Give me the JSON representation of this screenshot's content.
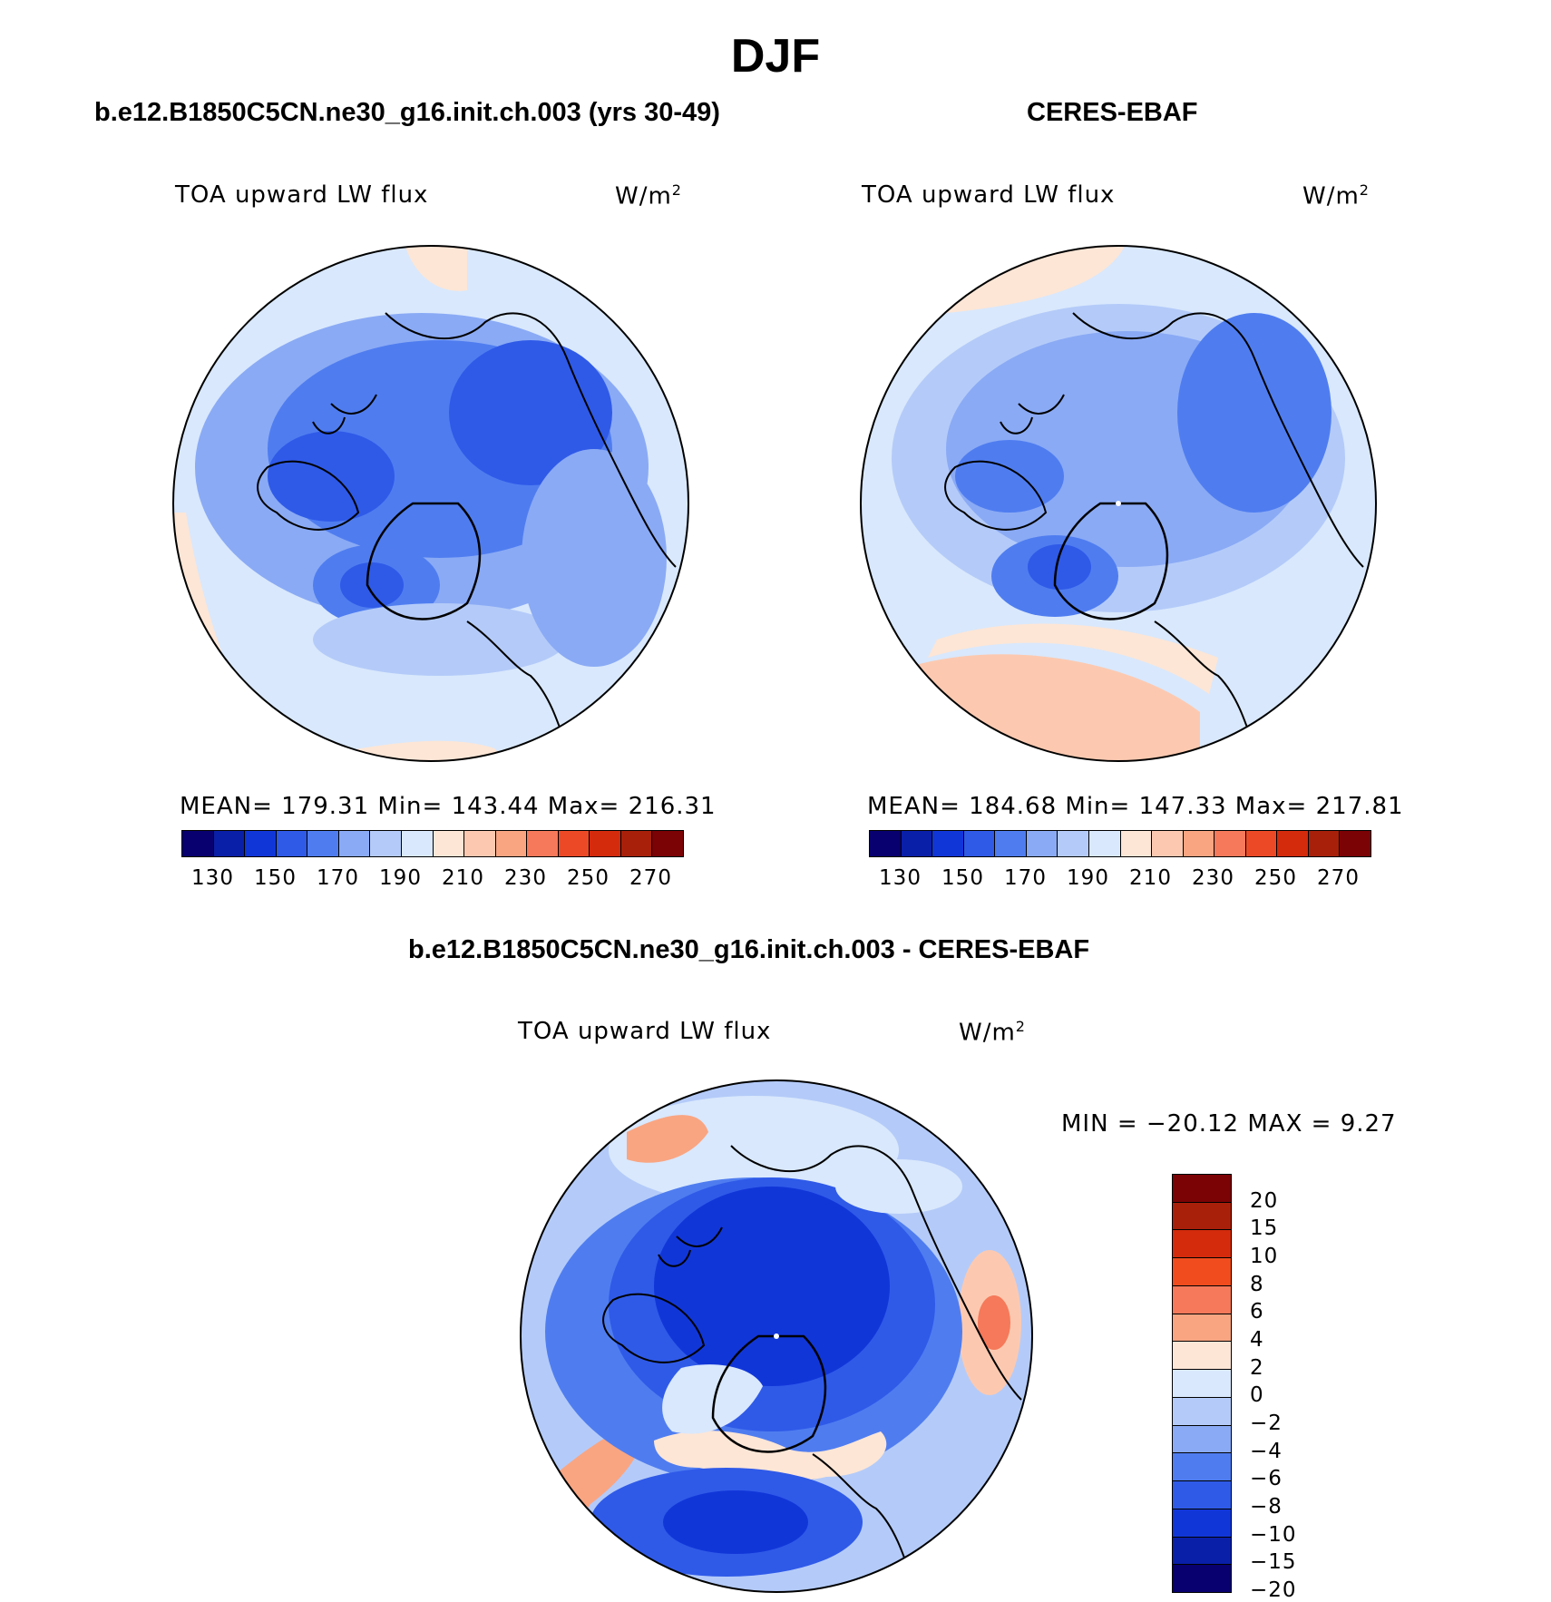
{
  "title": "DJF",
  "panels": {
    "model": {
      "title": "b.e12.B1850C5CN.ne30_g16.init.ch.003 (yrs 30-49)",
      "variable": "TOA upward LW flux",
      "units": "W/m",
      "units_sup": "2",
      "stats": "MEAN= 179.31   Min= 143.44   Max= 216.31"
    },
    "obs": {
      "title": "CERES-EBAF",
      "variable": "TOA upward LW flux",
      "units": "W/m",
      "units_sup": "2",
      "stats": "MEAN= 184.68   Min= 147.33   Max= 217.81"
    },
    "diff": {
      "title": "b.e12.B1850C5CN.ne30_g16.init.ch.003 - CERES-EBAF",
      "variable": "TOA upward LW flux",
      "units": "W/m",
      "units_sup": "2",
      "minmax": "MIN = −20.12 MAX =    9.27"
    }
  },
  "colorbar_abs": {
    "colors": [
      "#08006e",
      "#0a1fa8",
      "#1136d8",
      "#2f5ae8",
      "#4f7df0",
      "#8aaaf5",
      "#b4cbf9",
      "#d9e8fc",
      "#fde6d6",
      "#fcc9b0",
      "#f9a582",
      "#f5795a",
      "#ec4a26",
      "#d42b0d",
      "#a8200a",
      "#7b0205"
    ],
    "ticks": [
      "130",
      "150",
      "170",
      "190",
      "210",
      "230",
      "250",
      "270"
    ]
  },
  "colorbar_diff": {
    "colors": [
      "#7b0205",
      "#a8200a",
      "#d42b0d",
      "#f04c1e",
      "#f5795a",
      "#f9a582",
      "#fde6d6",
      "#d9e8fc",
      "#b4cbf9",
      "#8aaaf5",
      "#4f7df0",
      "#2f5ae8",
      "#1136d8",
      "#0a1fa8",
      "#08006e"
    ],
    "ticks": [
      "20",
      "15",
      "10",
      "8",
      "6",
      "4",
      "2",
      "0",
      "−2",
      "−4",
      "−6",
      "−8",
      "−10",
      "−15",
      "−20"
    ]
  }
}
